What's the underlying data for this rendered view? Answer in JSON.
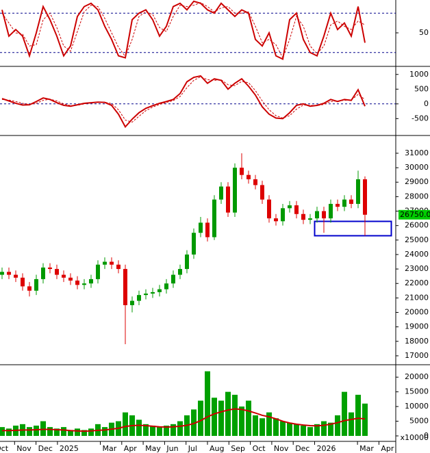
{
  "x_axis": {
    "labels": [
      "Oct",
      "Nov",
      "Dec",
      "2025",
      null,
      "Mar",
      "Apr",
      "May",
      "Jun",
      "Jul",
      "Aug",
      "Sep",
      "Oct",
      "Nov",
      "Dec",
      "2026",
      null,
      "Mar",
      "Apr"
    ]
  },
  "chart_data": [
    {
      "type": "line",
      "ylim": [
        0,
        100
      ],
      "yticks": [
        50
      ],
      "levels": [
        80,
        20
      ],
      "level_color": "#00008b",
      "series": [
        {
          "color": "#cc0000",
          "values": [
            85,
            45,
            55,
            45,
            15,
            50,
            90,
            70,
            45,
            15,
            30,
            75,
            90,
            95,
            85,
            60,
            40,
            15,
            12,
            70,
            80,
            85,
            70,
            45,
            60,
            90,
            95,
            85,
            98,
            95,
            85,
            80,
            95,
            85,
            75,
            85,
            80,
            40,
            30,
            50,
            15,
            10,
            70,
            80,
            40,
            20,
            15,
            45,
            80,
            55,
            65,
            45,
            90,
            35
          ]
        },
        {
          "color": "#cc0000",
          "dashed": true,
          "values": [
            80,
            65,
            50,
            48,
            30,
            32,
            70,
            80,
            58,
            30,
            22,
            52,
            82,
            92,
            90,
            72,
            50,
            28,
            14,
            40,
            75,
            82,
            78,
            58,
            52,
            75,
            92,
            90,
            92,
            96,
            90,
            82,
            88,
            90,
            80,
            80,
            82,
            60,
            35,
            40,
            32,
            12,
            40,
            75,
            60,
            30,
            18,
            30,
            62,
            68,
            60,
            55,
            68,
            62
          ]
        }
      ]
    },
    {
      "type": "line",
      "ylim": [
        -1050,
        1250
      ],
      "yticks": [
        1000,
        500,
        0,
        -500
      ],
      "levels": [
        0
      ],
      "level_color": "#00008b",
      "series": [
        {
          "color": "#cc0000",
          "values": [
            180,
            100,
            20,
            -40,
            -30,
            80,
            200,
            150,
            40,
            -50,
            -80,
            -30,
            20,
            40,
            60,
            50,
            -50,
            -350,
            -780,
            -520,
            -300,
            -150,
            -60,
            20,
            80,
            150,
            350,
            750,
            900,
            950,
            700,
            850,
            800,
            500,
            700,
            850,
            600,
            300,
            -100,
            -350,
            -480,
            -500,
            -300,
            -50,
            0,
            -80,
            -50,
            20,
            150,
            80,
            150,
            120,
            480,
            -80
          ]
        },
        {
          "color": "#cc0000",
          "dashed": true,
          "values": [
            150,
            130,
            80,
            20,
            -20,
            20,
            120,
            160,
            100,
            0,
            -60,
            -50,
            0,
            30,
            50,
            55,
            10,
            -200,
            -550,
            -620,
            -420,
            -230,
            -110,
            -20,
            50,
            110,
            250,
            550,
            800,
            920,
            820,
            800,
            820,
            650,
            620,
            760,
            720,
            450,
            100,
            -200,
            -400,
            -480,
            -400,
            -180,
            -40,
            -50,
            -60,
            -20,
            80,
            100,
            120,
            130,
            320,
            150
          ]
        }
      ]
    },
    {
      "type": "candlestick",
      "ylim": [
        16430,
        32180
      ],
      "yticks": [
        31000,
        30000,
        29000,
        28000,
        27000,
        26000,
        25000,
        24000,
        23000,
        22000,
        21000,
        20000,
        19000,
        18000,
        17000
      ],
      "up_color": "#009900",
      "down_color": "#dd0000",
      "last_label": "26750.00",
      "last_label_color": "#00cc00",
      "open": [
        22600,
        22800,
        22600,
        22400,
        21800,
        21500,
        22300,
        23100,
        23000,
        22600,
        22400,
        22200,
        21900,
        22000,
        22300,
        23300,
        23500,
        23300,
        23000,
        20500,
        20800,
        21200,
        21300,
        21400,
        21600,
        22000,
        22600,
        23000,
        24000,
        25500,
        26200,
        25200,
        27800,
        28700,
        26900,
        30000,
        29500,
        29200,
        28800,
        27800,
        26500,
        26300,
        27200,
        27400,
        26800,
        26400,
        26500,
        27000,
        26500,
        27500,
        27300,
        27800,
        27500,
        29200
      ],
      "high": [
        23100,
        23100,
        22900,
        22700,
        22100,
        22600,
        23400,
        23400,
        23300,
        22900,
        22700,
        22500,
        22300,
        22600,
        23600,
        23800,
        23800,
        23600,
        23300,
        21100,
        21500,
        21600,
        21700,
        21900,
        22300,
        22900,
        23300,
        24300,
        25800,
        26600,
        26500,
        28100,
        29000,
        29000,
        30300,
        31000,
        29800,
        29500,
        29100,
        28100,
        26800,
        27500,
        27700,
        27700,
        27100,
        26800,
        27300,
        27300,
        27800,
        27800,
        28100,
        28100,
        29800,
        29400
      ],
      "low": [
        22300,
        22300,
        22100,
        21500,
        21100,
        21200,
        22000,
        22700,
        22300,
        22100,
        21900,
        21600,
        21600,
        21700,
        22000,
        23000,
        23000,
        22700,
        17800,
        20000,
        20500,
        20900,
        21000,
        21100,
        21300,
        21700,
        22300,
        22700,
        23700,
        25200,
        24900,
        25000,
        27500,
        26600,
        26600,
        29200,
        28900,
        28500,
        27500,
        26200,
        26000,
        26000,
        26900,
        26500,
        26100,
        26100,
        26200,
        25500,
        26200,
        27000,
        27000,
        27200,
        27200,
        25300
      ],
      "close": [
        22800,
        22600,
        22400,
        21800,
        21500,
        22300,
        23100,
        23000,
        22600,
        22400,
        22200,
        21900,
        22000,
        22300,
        23300,
        23500,
        23300,
        23000,
        20500,
        20800,
        21200,
        21300,
        21400,
        21600,
        22000,
        22600,
        23000,
        24000,
        25500,
        26200,
        25200,
        27800,
        28700,
        26900,
        30000,
        29500,
        29200,
        28800,
        27800,
        26500,
        26300,
        27200,
        27400,
        26800,
        26400,
        26500,
        27000,
        26500,
        27500,
        27300,
        27800,
        27500,
        29200,
        26750
      ]
    },
    {
      "type": "bar",
      "ylim": [
        0,
        24000
      ],
      "yticks": [
        20000,
        15000,
        10000,
        5000,
        0
      ],
      "unit_label": "x10000",
      "color": "#00a000",
      "values": [
        3000,
        2500,
        3500,
        4000,
        3000,
        3500,
        5000,
        3000,
        2500,
        3000,
        2000,
        2500,
        2000,
        2500,
        4000,
        3000,
        4500,
        5000,
        8000,
        7000,
        5500,
        4000,
        3500,
        3000,
        3500,
        4000,
        5000,
        7000,
        9000,
        12000,
        22000,
        13000,
        12000,
        15000,
        14000,
        10000,
        12000,
        7000,
        6000,
        8000,
        6000,
        5000,
        4500,
        4000,
        3500,
        3000,
        4000,
        5000,
        4500,
        7000,
        15000,
        8000,
        14000,
        11000
      ],
      "ma": {
        "color": "#cc0000",
        "values": [
          1800,
          1800,
          1900,
          2000,
          2000,
          2100,
          2200,
          2200,
          2100,
          2000,
          1800,
          1700,
          1600,
          1700,
          1900,
          2000,
          2300,
          2600,
          3200,
          3500,
          3600,
          3500,
          3300,
          3100,
          3000,
          3100,
          3300,
          3600,
          4200,
          5200,
          6500,
          7500,
          8200,
          8800,
          9200,
          9000,
          8500,
          7800,
          7000,
          6500,
          5800,
          5000,
          4400,
          4000,
          3700,
          3500,
          3400,
          3600,
          4000,
          4500,
          5200,
          5600,
          6000,
          5800
        ]
      }
    }
  ]
}
